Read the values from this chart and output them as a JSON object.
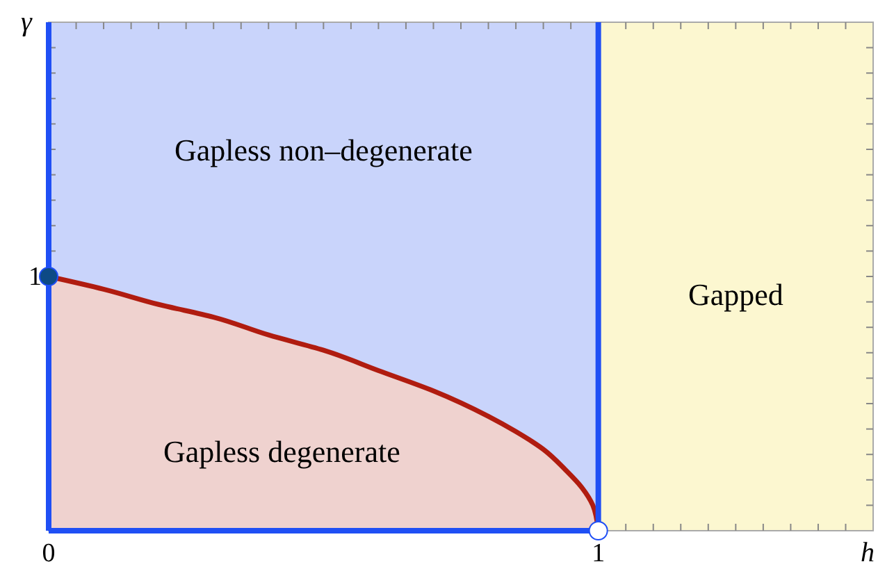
{
  "chart_data": {
    "type": "area",
    "xlabel": "h",
    "ylabel": "γ",
    "xlim": [
      0,
      1.5
    ],
    "ylim": [
      0,
      2
    ],
    "xticks": [
      0,
      {
        "value": 0.05,
        "label": null
      },
      {
        "value": 0.1,
        "label": null
      },
      {
        "value": 0.15,
        "label": null
      },
      {
        "value": 0.2,
        "label": null
      },
      {
        "value": 0.25,
        "label": null
      },
      {
        "value": 0.3,
        "label": null
      },
      {
        "value": 0.35,
        "label": null
      },
      {
        "value": 0.4,
        "label": null
      },
      {
        "value": 0.45,
        "label": null
      },
      {
        "value": 0.5,
        "label": null
      },
      {
        "value": 0.55,
        "label": null
      },
      {
        "value": 0.6,
        "label": null
      },
      {
        "value": 0.65,
        "label": null
      },
      {
        "value": 0.7,
        "label": null
      },
      {
        "value": 0.75,
        "label": null
      },
      {
        "value": 0.8,
        "label": null
      },
      {
        "value": 0.85,
        "label": null
      },
      {
        "value": 0.9,
        "label": null
      },
      {
        "value": 0.95,
        "label": null
      },
      1,
      {
        "value": 1.05,
        "label": null
      },
      {
        "value": 1.1,
        "label": null
      },
      {
        "value": 1.15,
        "label": null
      },
      {
        "value": 1.2,
        "label": null
      },
      {
        "value": 1.25,
        "label": null
      },
      {
        "value": 1.3,
        "label": null
      },
      {
        "value": 1.35,
        "label": null
      },
      {
        "value": 1.4,
        "label": null
      },
      {
        "value": 1.45,
        "label": null
      }
    ],
    "yticks": [
      {
        "value": 0.1,
        "label": null
      },
      {
        "value": 0.2,
        "label": null
      },
      {
        "value": 0.3,
        "label": null
      },
      {
        "value": 0.4,
        "label": null
      },
      {
        "value": 0.5,
        "label": null
      },
      {
        "value": 0.6,
        "label": null
      },
      {
        "value": 0.7,
        "label": null
      },
      {
        "value": 0.8,
        "label": null
      },
      {
        "value": 0.9,
        "label": null
      },
      1,
      {
        "value": 1.1,
        "label": null
      },
      {
        "value": 1.2,
        "label": null
      },
      {
        "value": 1.3,
        "label": null
      },
      {
        "value": 1.4,
        "label": null
      },
      {
        "value": 1.5,
        "label": null
      },
      {
        "value": 1.6,
        "label": null
      },
      {
        "value": 1.7,
        "label": null
      },
      {
        "value": 1.8,
        "label": null
      },
      {
        "value": 1.9,
        "label": null
      }
    ],
    "bands": [
      {
        "axis": "x",
        "from": 0,
        "to": 1,
        "color": "#c9d4fb",
        "label": "Gapless non–degenerate"
      },
      {
        "axis": "x",
        "from": 1,
        "to": 1.5,
        "color": "#fcf7d0",
        "label": "Gapped"
      }
    ],
    "ref_lines": [
      {
        "axis": "x",
        "value": 0,
        "color": "#1f4ff5"
      },
      {
        "axis": "x",
        "value": 1,
        "color": "#1f4ff5"
      }
    ],
    "series": [
      {
        "color": "#b01c10",
        "x": [
          0,
          0.1,
          0.2,
          0.3,
          0.4,
          0.5,
          0.6,
          0.7,
          0.8,
          0.85,
          0.9,
          0.94,
          0.97,
          0.99,
          1
        ],
        "values": [
          1,
          0.95,
          0.89,
          0.84,
          0.77,
          0.71,
          0.63,
          0.55,
          0.45,
          0.39,
          0.32,
          0.24,
          0.17,
          0.1,
          0
        ]
      },
      {
        "type": "line",
        "color": "#1f4ff5",
        "x": [
          0,
          1
        ],
        "values": [
          0,
          0
        ]
      },
      {
        "type": "scatter",
        "x": [
          0,
          1
        ],
        "values": [
          1,
          0
        ],
        "colors": [
          "#0d4a85",
          "#ffffff"
        ]
      }
    ],
    "annotations": [
      "Gapless degenerate"
    ],
    "grid": false
  }
}
